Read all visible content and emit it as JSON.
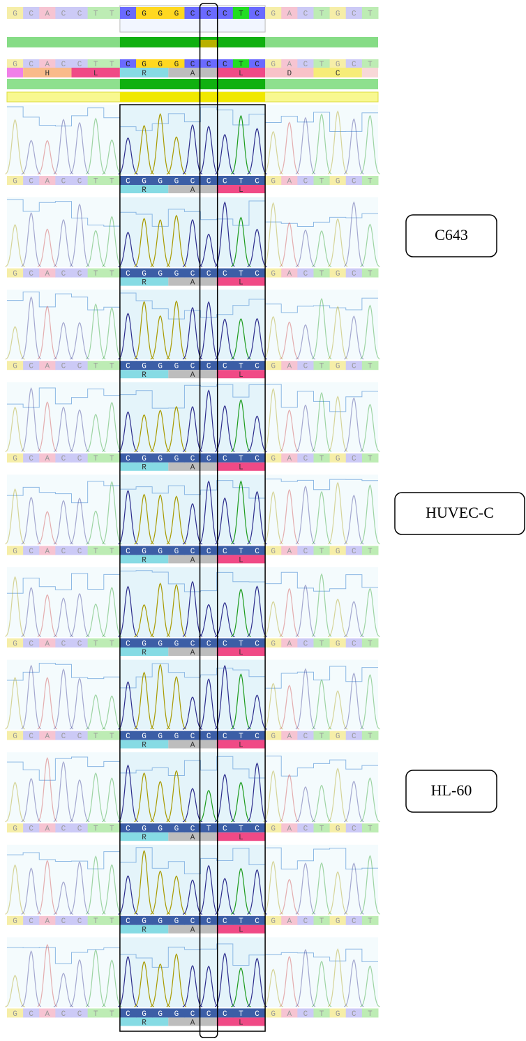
{
  "header": {
    "aligned_bases": [
      "G",
      "C",
      "A",
      "C",
      "C",
      "T",
      "T",
      "C",
      "G",
      "G",
      "G",
      "C",
      "C",
      "C",
      "T",
      "C",
      "G",
      "A",
      "C",
      "T",
      "G",
      "C",
      "T"
    ],
    "reference_bases": [
      "G",
      "C",
      "A",
      "C",
      "C",
      "T",
      "T",
      "C",
      "G",
      "G",
      "G",
      "C",
      "C",
      "C",
      "T",
      "C",
      "G",
      "A",
      "C",
      "T",
      "G",
      "C",
      "T"
    ],
    "reference_translation": [
      "H",
      "L",
      "R",
      "A",
      "L",
      "D",
      "C"
    ]
  },
  "tracks": [
    {
      "bases": [
        "G",
        "C",
        "A",
        "C",
        "C",
        "T",
        "T",
        "C",
        "G",
        "G",
        "G",
        "C",
        "C",
        "C",
        "T",
        "C",
        "G",
        "A",
        "C",
        "T",
        "G",
        "C",
        "T"
      ],
      "translation": [
        "R",
        "A",
        "L"
      ]
    },
    {
      "bases": [
        "G",
        "C",
        "A",
        "C",
        "C",
        "T",
        "T",
        "C",
        "G",
        "G",
        "G",
        "C",
        "C",
        "C",
        "T",
        "C",
        "G",
        "A",
        "C",
        "T",
        "G",
        "C",
        "T"
      ],
      "translation": [
        "R",
        "A",
        "L"
      ]
    },
    {
      "bases": [
        "G",
        "C",
        "A",
        "C",
        "C",
        "T",
        "T",
        "C",
        "G",
        "G",
        "G",
        "C",
        "C",
        "C",
        "T",
        "C",
        "G",
        "A",
        "C",
        "T",
        "G",
        "C",
        "T"
      ],
      "translation": [
        "R",
        "A",
        "L"
      ]
    },
    {
      "bases": [
        "G",
        "C",
        "A",
        "C",
        "C",
        "T",
        "T",
        "C",
        "G",
        "G",
        "G",
        "C",
        "C",
        "C",
        "T",
        "C",
        "G",
        "A",
        "C",
        "T",
        "G",
        "C",
        "T"
      ],
      "translation": [
        "R",
        "A",
        "L"
      ]
    },
    {
      "bases": [
        "G",
        "C",
        "A",
        "C",
        "C",
        "T",
        "T",
        "C",
        "G",
        "G",
        "G",
        "C",
        "C",
        "C",
        "T",
        "C",
        "G",
        "A",
        "C",
        "T",
        "G",
        "C",
        "T"
      ],
      "translation": [
        "R",
        "A",
        "L"
      ]
    },
    {
      "bases": [
        "G",
        "C",
        "A",
        "C",
        "C",
        "T",
        "T",
        "C",
        "G",
        "G",
        "G",
        "C",
        "C",
        "C",
        "T",
        "C",
        "G",
        "A",
        "C",
        "T",
        "G",
        "C",
        "T"
      ],
      "translation": [
        "R",
        "A",
        "L"
      ]
    },
    {
      "bases": [
        "G",
        "C",
        "A",
        "C",
        "C",
        "T",
        "T",
        "C",
        "G",
        "G",
        "G",
        "C",
        "C",
        "C",
        "T",
        "C",
        "G",
        "A",
        "C",
        "T",
        "G",
        "C",
        "T"
      ],
      "translation": [
        "R",
        "A",
        "L"
      ]
    },
    {
      "bases": [
        "G",
        "C",
        "A",
        "C",
        "C",
        "T",
        "T",
        "C",
        "G",
        "G",
        "G",
        "C",
        "T",
        "C",
        "T",
        "C",
        "G",
        "A",
        "C",
        "T",
        "G",
        "C",
        "T"
      ],
      "translation": [
        "R",
        "A",
        "L"
      ]
    },
    {
      "bases": [
        "G",
        "C",
        "A",
        "C",
        "C",
        "T",
        "T",
        "C",
        "G",
        "G",
        "G",
        "C",
        "C",
        "C",
        "T",
        "C",
        "G",
        "A",
        "C",
        "T",
        "G",
        "C",
        "T"
      ],
      "translation": [
        "R",
        "A",
        "L"
      ]
    },
    {
      "bases": [
        "G",
        "C",
        "A",
        "C",
        "C",
        "T",
        "T",
        "C",
        "G",
        "G",
        "G",
        "C",
        "C",
        "C",
        "T",
        "C",
        "G",
        "A",
        "C",
        "T",
        "G",
        "C",
        "T"
      ],
      "translation": [
        "R",
        "A",
        "L"
      ]
    }
  ],
  "labels": [
    "C643",
    "HUVEC-C",
    "HL-60"
  ]
}
